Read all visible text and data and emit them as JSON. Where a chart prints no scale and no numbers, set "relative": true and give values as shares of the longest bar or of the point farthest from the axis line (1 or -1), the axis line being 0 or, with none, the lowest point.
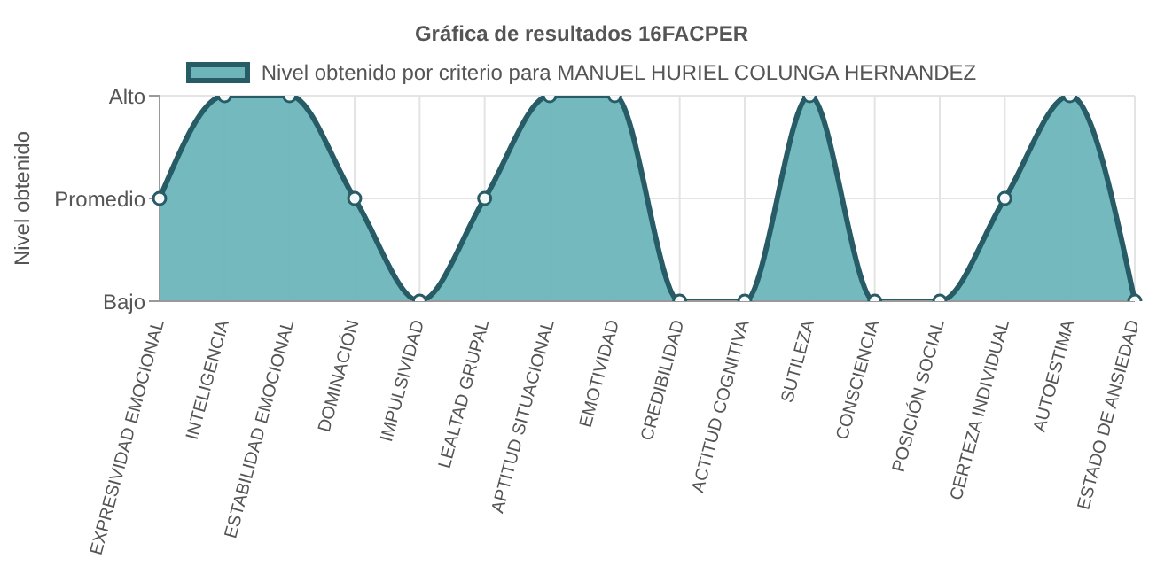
{
  "chart_data": {
    "type": "area",
    "title": "Gráfica de resultados 16FACPER",
    "ylabel": "Nivel obtenido",
    "categories": [
      "EXPRESIVIDAD EMOCIONAL",
      "INTELIGENCIA",
      "ESTABILIDAD EMOCIONAL",
      "DOMINACIÓN",
      "IMPULSIVIDAD",
      "LEALTAD GRUPAL",
      "APTITUD SITUACIONAL",
      "EMOTIVIDAD",
      "CREDIBILIDAD",
      "ACTITUD COGNITIVA",
      "SUTILEZA",
      "CONSCIENCIA",
      "POSICIÓN SOCIAL",
      "CERTEZA INDIVIDUAL",
      "AUTOESTIMA",
      "ESTADO DE ANSIEDAD"
    ],
    "series": [
      {
        "name": "Nivel obtenido por criterio para MANUEL HURIEL COLUNGA HERNANDEZ",
        "color": "#6db5b9",
        "values": [
          0.5,
          1,
          1,
          0.5,
          0,
          0.5,
          1,
          1,
          0,
          0,
          1,
          0,
          0,
          0.5,
          1,
          0
        ]
      }
    ],
    "relative": true,
    "y_categories": [
      "Alto",
      "Promedio",
      "Bajo"
    ],
    "grid": true,
    "legend": "top",
    "marker": "circle",
    "line_style": "solid"
  }
}
